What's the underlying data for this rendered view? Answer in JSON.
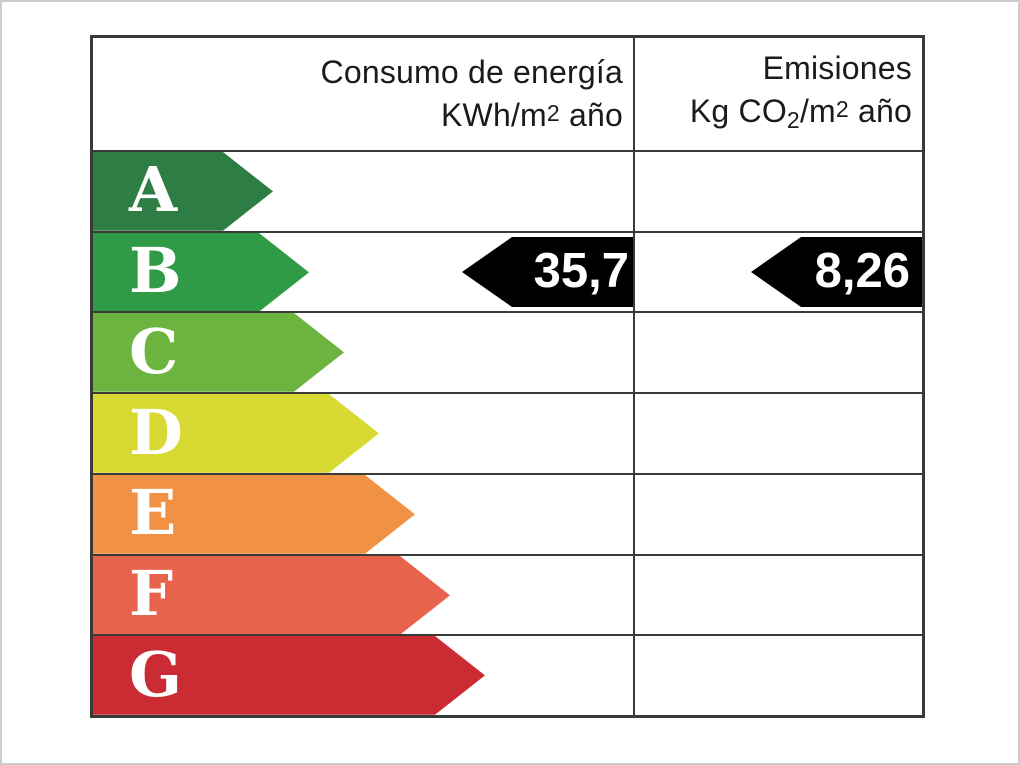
{
  "header": {
    "consumption": {
      "title": "Consumo de energía",
      "unit_prefix": "KWh/m",
      "unit_sup": "2",
      "unit_suffix": " año"
    },
    "emissions": {
      "title": "Emisiones",
      "unit_p1": "Kg CO",
      "unit_sub": "2",
      "unit_p2": "/m",
      "unit_sup": "2",
      "unit_p3": " año"
    }
  },
  "ratings": [
    {
      "label": "A",
      "color": "#2e7d44",
      "arrow_width": 180
    },
    {
      "label": "B",
      "color": "#2f9b47",
      "arrow_width": 216
    },
    {
      "label": "C",
      "color": "#6cb33f",
      "arrow_width": 251
    },
    {
      "label": "D",
      "color": "#d8da33",
      "arrow_width": 286
    },
    {
      "label": "E",
      "color": "#f09143",
      "arrow_width": 322
    },
    {
      "label": "F",
      "color": "#e8634c",
      "arrow_width": 357
    },
    {
      "label": "G",
      "color": "#cb2b33",
      "arrow_width": 392
    }
  ],
  "indicators": {
    "rating": "B",
    "consumption_value": "35,7",
    "emissions_value": "8,26",
    "arrow_color": "#000000",
    "value_text_color": "#ffffff"
  },
  "colors": {
    "table_border": "#3a3a36",
    "background": "#ffffff",
    "letter_text": "#ffffff"
  },
  "chart_data": {
    "type": "table",
    "title": "Etiqueta de eficiencia energética",
    "columns": [
      "Consumo de energía KWh/m2 año",
      "Emisiones Kg CO2/m2 año"
    ],
    "categories": [
      "A",
      "B",
      "C",
      "D",
      "E",
      "F",
      "G"
    ],
    "category_colors": [
      "#2e7d44",
      "#2f9b47",
      "#6cb33f",
      "#d8da33",
      "#f09143",
      "#e8634c",
      "#cb2b33"
    ],
    "rating_achieved": "B",
    "values": {
      "consumo_kwh_m2_ano": 35.7,
      "emisiones_kg_co2_m2_ano": 8.26
    },
    "legend_position": "none",
    "grid": true
  }
}
